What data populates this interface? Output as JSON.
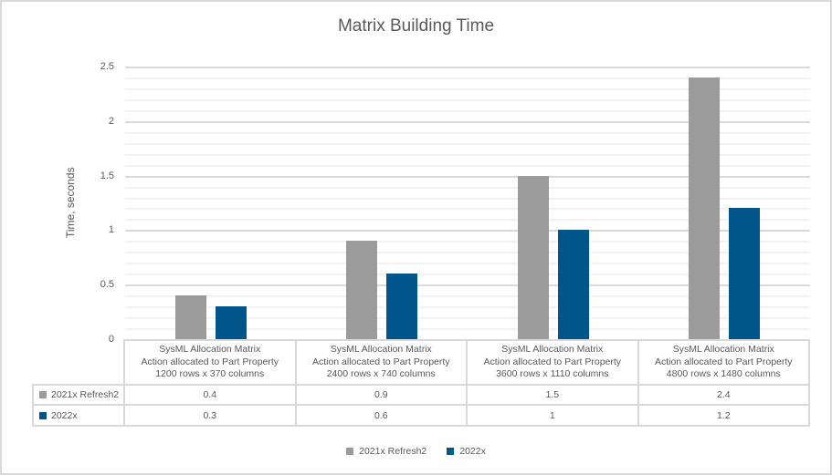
{
  "colors": {
    "text": "#595959",
    "grid_major": "#d9d9d9",
    "grid_minor": "#f2f2f2",
    "table_border": "#d9d9d9",
    "canvas_border": "#d9d9d9",
    "series1": "#9b9b9b",
    "series2": "#00568b"
  },
  "chart_data": {
    "type": "bar",
    "title": "Matrix Building Time",
    "xlabel": "",
    "ylabel": "Time, seconds",
    "ylim": [
      0,
      2.5
    ],
    "ytick_values": [
      0,
      0.5,
      1,
      1.5,
      2,
      2.5
    ],
    "ytick_labels": [
      "0",
      "0.5",
      "1",
      "1.5",
      "2",
      "2.5"
    ],
    "minor_unit": 0.1,
    "grid": true,
    "legend_position": "bottom",
    "data_table_shown": true,
    "categories": [
      [
        "SysML Allocation Matrix",
        "Action allocated to Part Property",
        "1200 rows x 370 columns"
      ],
      [
        "SysML Allocation Matrix",
        "Action allocated to Part Property",
        "2400 rows x 740 columns"
      ],
      [
        "SysML Allocation Matrix",
        "Action allocated to Part Property",
        "3600 rows x 1110 columns"
      ],
      [
        "SysML Allocation Matrix",
        "Action allocated to Part Property",
        "4800 rows x 1480 columns"
      ]
    ],
    "series": [
      {
        "name": "2021x Refresh2",
        "color": "#9b9b9b",
        "values": [
          0.4,
          0.9,
          1.5,
          2.4
        ],
        "value_labels": [
          "0.4",
          "0.9",
          "1.5",
          "2.4"
        ]
      },
      {
        "name": "2022x",
        "color": "#00568b",
        "values": [
          0.3,
          0.6,
          1.0,
          1.2
        ],
        "value_labels": [
          "0.3",
          "0.6",
          "1",
          "1.2"
        ]
      }
    ]
  }
}
